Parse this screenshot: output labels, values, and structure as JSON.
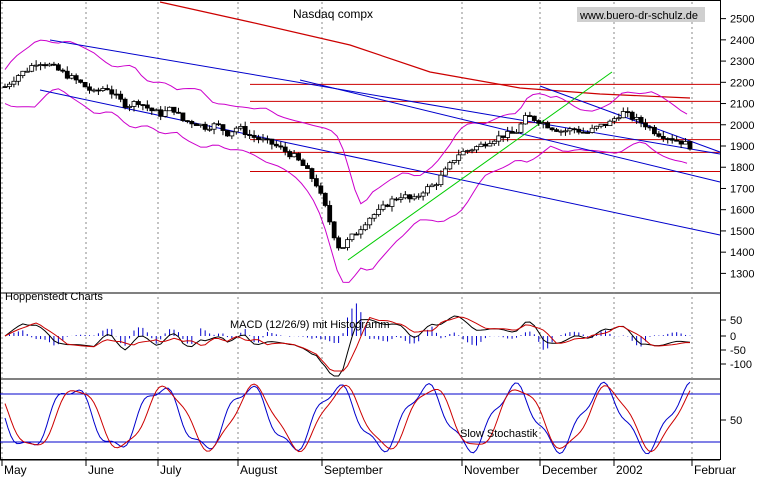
{
  "chart_data": [
    {
      "type": "candlestick",
      "title": "Nasdaq compx",
      "watermark": "www.buero-dr-schulz.de",
      "source_label": "Hoppenstedt Charts",
      "ylim": [
        1250,
        2550
      ],
      "y_ticks": [
        2500,
        2400,
        2300,
        2200,
        2100,
        2000,
        1900,
        1800,
        1700,
        1600,
        1500,
        1400,
        1300
      ],
      "x_labels": [
        "May",
        "June",
        "July",
        "August",
        "September",
        "November",
        "December",
        "2002",
        "Februar"
      ],
      "grid": "vertical dotted",
      "horizontal_levels": [
        2190,
        2110,
        2010,
        1930,
        1870,
        1780
      ],
      "colors": {
        "price": "#000000",
        "channel": "#0000cc",
        "bands": "#cc00cc",
        "ma": "#cc0000",
        "trend": "#00cc00",
        "levels": "#cc0000"
      },
      "price_path": [
        [
          0,
          2180
        ],
        [
          8,
          2230
        ],
        [
          15,
          2260
        ],
        [
          22,
          2300
        ],
        [
          30,
          2280
        ],
        [
          40,
          2240
        ],
        [
          50,
          2200
        ],
        [
          60,
          2150
        ],
        [
          68,
          2180
        ],
        [
          75,
          2130
        ],
        [
          82,
          2090
        ],
        [
          90,
          2110
        ],
        [
          98,
          2070
        ],
        [
          105,
          2050
        ],
        [
          113,
          2080
        ],
        [
          120,
          2020
        ],
        [
          128,
          2010
        ],
        [
          135,
          1990
        ],
        [
          143,
          2000
        ],
        [
          150,
          1960
        ],
        [
          157,
          1990
        ],
        [
          165,
          1950
        ],
        [
          172,
          1930
        ],
        [
          180,
          1910
        ],
        [
          188,
          1880
        ],
        [
          195,
          1850
        ],
        [
          202,
          1800
        ],
        [
          210,
          1720
        ],
        [
          216,
          1610
        ],
        [
          222,
          1480
        ],
        [
          226,
          1410
        ],
        [
          232,
          1460
        ],
        [
          238,
          1500
        ],
        [
          245,
          1560
        ],
        [
          252,
          1590
        ],
        [
          260,
          1640
        ],
        [
          268,
          1670
        ],
        [
          275,
          1640
        ],
        [
          282,
          1690
        ],
        [
          290,
          1720
        ],
        [
          298,
          1790
        ],
        [
          305,
          1860
        ],
        [
          312,
          1880
        ],
        [
          320,
          1900
        ],
        [
          328,
          1930
        ],
        [
          336,
          1950
        ],
        [
          344,
          1960
        ],
        [
          352,
          2040
        ],
        [
          360,
          2020
        ],
        [
          368,
          1990
        ],
        [
          376,
          1970
        ],
        [
          384,
          1980
        ],
        [
          392,
          1960
        ],
        [
          400,
          1990
        ],
        [
          408,
          2010
        ],
        [
          416,
          2060
        ],
        [
          424,
          2030
        ],
        [
          432,
          2000
        ],
        [
          440,
          1960
        ],
        [
          448,
          1940
        ],
        [
          456,
          1920
        ],
        [
          462,
          1900
        ]
      ]
    },
    {
      "type": "line",
      "title": "MACD (12/26/9) mit Histogramm",
      "y_ticks": [
        "50",
        "0",
        "-50",
        "-100"
      ],
      "series": [],
      "colors": {
        "macd": "#000000",
        "signal": "#cc0000",
        "histogram": "#0000cc"
      }
    },
    {
      "type": "line",
      "title": "Slow Stochastik",
      "y_ticks": [
        "50"
      ],
      "series": [],
      "colors": {
        "k": "#0000cc",
        "d": "#cc0000",
        "bounds": "#0000cc"
      }
    }
  ]
}
